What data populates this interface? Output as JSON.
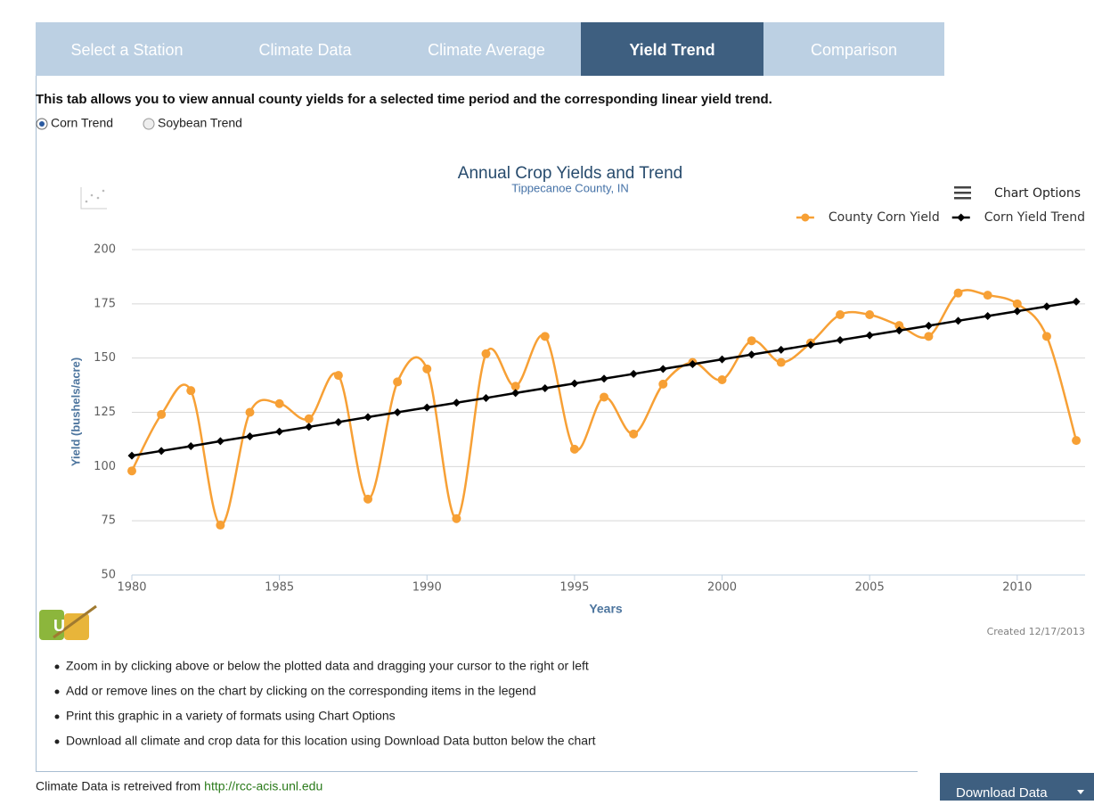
{
  "tabs": [
    "Select a Station",
    "Climate Data",
    "Climate Average",
    "Yield Trend",
    "Comparison"
  ],
  "description": "This tab allows you to view annual county yields for a selected time period and the corresponding linear yield trend.",
  "radios": [
    "Corn Trend",
    "Soybean Trend"
  ],
  "chart_options": "Chart Options",
  "created": "Created 12/17/2013",
  "chart_data": {
    "type": "line",
    "title": "Annual Crop Yields and Trend",
    "subtitle": "Tippecanoe County, IN",
    "x_label": "Years",
    "y_label": "Yield (bushels/acre)",
    "x": [
      1980,
      1981,
      1982,
      1983,
      1984,
      1985,
      1986,
      1987,
      1988,
      1989,
      1990,
      1991,
      1992,
      1993,
      1994,
      1995,
      1996,
      1997,
      1998,
      1999,
      2000,
      2001,
      2002,
      2003,
      2004,
      2005,
      2006,
      2007,
      2008,
      2009,
      2010,
      2011,
      2012
    ],
    "series": [
      {
        "name": "County Corn Yield",
        "color": "#f7a035",
        "smooth": true,
        "marker": "circle",
        "values": [
          98,
          124,
          135,
          73,
          125,
          129,
          122,
          142,
          85,
          139,
          145,
          76,
          152,
          137,
          160,
          108,
          132,
          115,
          138,
          148,
          140,
          158,
          148,
          157,
          170,
          170,
          165,
          160,
          180,
          179,
          175,
          160,
          112
        ]
      },
      {
        "name": "Corn Yield Trend",
        "color": "#000000",
        "smooth": false,
        "marker": "diamond",
        "values": [
          105,
          107.2,
          109.4,
          111.7,
          113.9,
          116.1,
          118.3,
          120.5,
          122.8,
          125,
          127.2,
          129.4,
          131.6,
          133.9,
          136.1,
          138.3,
          140.5,
          142.7,
          145,
          147.2,
          149.4,
          151.6,
          153.8,
          156.1,
          158.3,
          160.5,
          162.7,
          164.9,
          167.2,
          169.4,
          171.6,
          173.8,
          176
        ]
      }
    ],
    "xlim": [
      1980,
      2012.3
    ],
    "xticks": [
      1980,
      1985,
      1990,
      1995,
      2000,
      2005,
      2010
    ],
    "ylim": [
      50,
      200
    ],
    "yticks": [
      50,
      75,
      100,
      125,
      150,
      175,
      200
    ],
    "grid": true,
    "legend": "top-right"
  },
  "bullets": [
    "Zoom in by clicking above or below the plotted data and dragging your cursor to the right or left",
    "Add or remove lines on the chart by clicking on the corresponding items in the legend",
    "Print this graphic in a variety of formats using Chart Options",
    "Download all climate and crop data for this location using Download Data button below the chart"
  ],
  "footer": {
    "text": "Climate Data is retreived from",
    "link": "http://rcc-acis.unl.edu"
  },
  "button": "Download Data"
}
